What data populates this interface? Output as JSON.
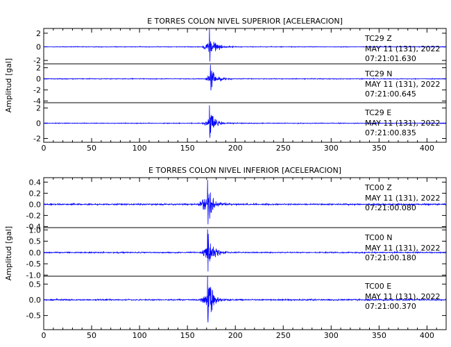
{
  "chart_data": [
    {
      "type": "line",
      "title": "E TORRES COLON NIVEL SUPERIOR [ACELERACION]",
      "ylabel": "Amplitud [gal]",
      "xlim": [
        0,
        420
      ],
      "x_ticks": [
        "0",
        "50",
        "100",
        "150",
        "200",
        "250",
        "300",
        "350",
        "400"
      ],
      "grid": false,
      "traces": [
        {
          "station": "TC29",
          "component": "Z",
          "date": "MAY 11 (131), 2022",
          "time": "07:21:01.630",
          "ylim": [
            -2.5,
            2.7
          ],
          "y_ticks": [
            "2",
            "0",
            "-2"
          ],
          "event_onset_s": 165,
          "peak_time_s": 173,
          "peak_amplitude_gal": 2.7,
          "noise_amplitude_gal": 0.06
        },
        {
          "station": "TC29",
          "component": "N",
          "date": "MAY 11 (131), 2022",
          "time": "07:21:00.645",
          "ylim": [
            -4.3,
            2.7
          ],
          "y_ticks": [
            "2",
            "0",
            "-2",
            "-4"
          ],
          "event_onset_s": 168,
          "peak_time_s": 174,
          "peak_amplitude_gal": 2.6,
          "noise_amplitude_gal": 0.08
        },
        {
          "station": "TC29",
          "component": "E",
          "date": "MAY 11 (131), 2022",
          "time": "07:21:00.835",
          "ylim": [
            -2.5,
            2.7
          ],
          "y_ticks": [
            "2",
            "0",
            "-2"
          ],
          "event_onset_s": 165,
          "peak_time_s": 173,
          "peak_amplitude_gal": 2.4,
          "noise_amplitude_gal": 0.06
        }
      ]
    },
    {
      "type": "line",
      "title": "E TORRES COLON NIVEL INFERIOR [ACELERACION]",
      "ylabel": "Amplitud [gal]",
      "xlim": [
        0,
        420
      ],
      "x_ticks": [
        "0",
        "50",
        "100",
        "150",
        "200",
        "250",
        "300",
        "350",
        "400"
      ],
      "grid": false,
      "traces": [
        {
          "station": "TC00",
          "component": "Z",
          "date": "MAY 11 (131), 2022",
          "time": "07:21:00.080",
          "ylim": [
            -0.42,
            0.48
          ],
          "y_ticks": [
            "0.4",
            "0.2",
            "0.0",
            "-0.2",
            "-0.4"
          ],
          "event_onset_s": 160,
          "peak_time_s": 171,
          "peak_amplitude_gal": 0.45,
          "noise_amplitude_gal": 0.015
        },
        {
          "station": "TC00",
          "component": "N",
          "date": "MAY 11 (131), 2022",
          "time": "07:21:00.180",
          "ylim": [
            -1.05,
            1.1
          ],
          "y_ticks": [
            "1.0",
            "0.5",
            "0.0",
            "-0.5",
            "-1.0"
          ],
          "event_onset_s": 163,
          "peak_time_s": 171,
          "peak_amplitude_gal": 1.05,
          "noise_amplitude_gal": 0.03
        },
        {
          "station": "TC00",
          "component": "E",
          "date": "MAY 11 (131), 2022",
          "time": "07:21:00.370",
          "ylim": [
            -0.95,
            0.75
          ],
          "y_ticks": [
            "0.5",
            "0.0",
            "-0.5"
          ],
          "event_onset_s": 163,
          "peak_time_s": 171,
          "peak_amplitude_gal": 0.9,
          "noise_amplitude_gal": 0.025
        }
      ]
    }
  ],
  "colors": {
    "trace": "#0000ff",
    "axes": "#000000",
    "background": "#ffffff"
  }
}
